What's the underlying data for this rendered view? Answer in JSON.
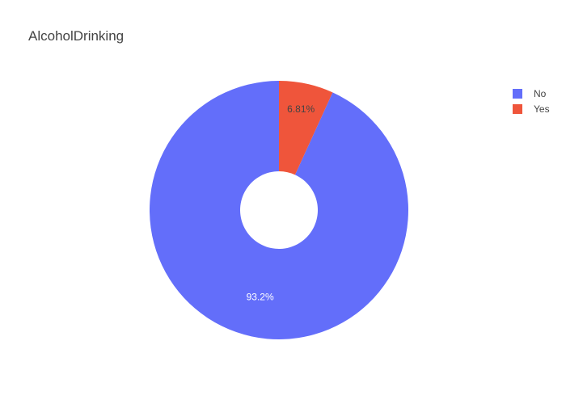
{
  "chart_data": {
    "type": "pie",
    "title": "AlcoholDrinking",
    "hole": true,
    "slices": [
      {
        "label": "No",
        "value": 93.19,
        "text": "93.2%",
        "color": "#636efa",
        "label_color": "#ffffff"
      },
      {
        "label": "Yes",
        "value": 6.81,
        "text": "6.81%",
        "color": "#ef553b",
        "label_color": "#444444"
      }
    ],
    "legend": {
      "position": "top-right",
      "items": [
        "No",
        "Yes"
      ]
    }
  }
}
